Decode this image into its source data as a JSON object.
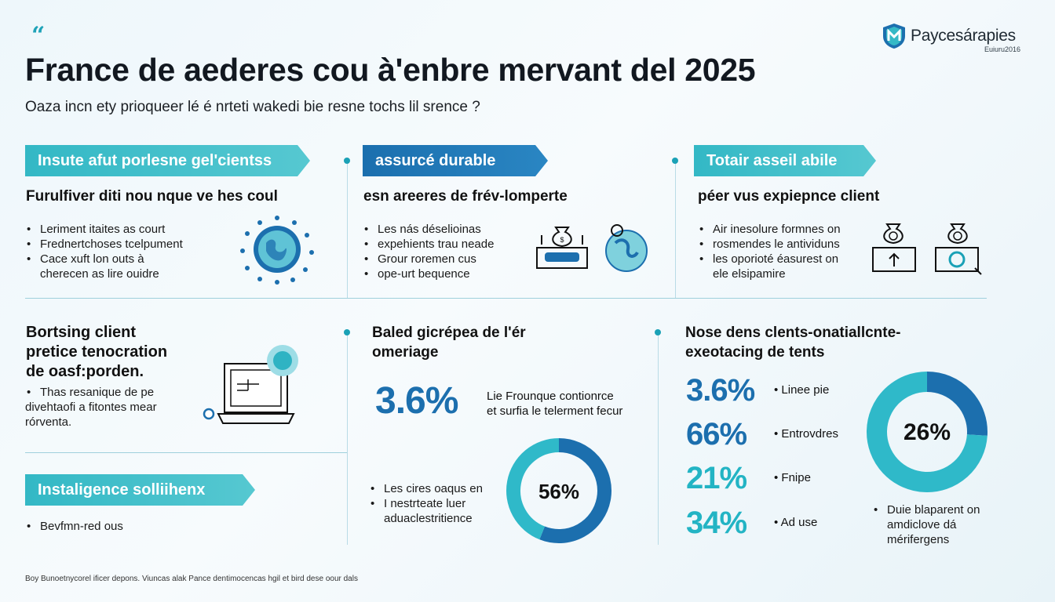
{
  "header": {
    "quote_mark": "“",
    "title": "France de aederes cou à'enbre mervant del 2025",
    "subtitle": "Oaza incn ety prioqueer lé é nrteti wakedi bie resne tochs lil srence ?"
  },
  "brand": {
    "name": "Paycesárapies",
    "tagline": "Euiuru2016"
  },
  "colors": {
    "teal": "#33b8c5",
    "blue": "#1b6fae",
    "background": "#eef7fb"
  },
  "col1": {
    "banner": "Insute afut porlesne gel'cientss",
    "heading": "Furulfiver diti nou nque ve hes coul",
    "bullets": [
      "Leriment itaites as court",
      "Frednertchoses tcelpument",
      "Cace xuft lon outs à"
    ],
    "bullet_cont": "cherecen as lire ouidre",
    "icon": "globe-icon"
  },
  "col2": {
    "banner": "assurcé durable",
    "heading": "esn areeres de frév-lomperte",
    "bullets": [
      "Les nás déselioinas",
      "expehients trau neade",
      "Grour roremen cus",
      "ope-urt bequence"
    ],
    "icons": [
      "money-bag-icon",
      "globe-icon"
    ]
  },
  "col3": {
    "banner": "Totair asseil abile",
    "heading": "péer vus expiepnce client",
    "bullets": [
      "Air inesolure formnes on",
      "rosmendes le antividuns",
      "les oporioté éasurest on"
    ],
    "bullet_cont": "ele elsipamire",
    "icons": [
      "money-bag-growth-icon",
      "money-bag-chart-icon"
    ]
  },
  "mid1": {
    "heading": "Bortsing client\npretice tenocration\nde oasf:porden.",
    "bullets": [
      "Thas resanique de pe"
    ],
    "bullet_cont": [
      "divehtaofi a fitontes mear",
      "rórventa."
    ],
    "icon": "laptop-icon"
  },
  "banner_bottom": "Instaligence solliihenx",
  "bottom1": {
    "bullets": [
      "Bevfmn-red ous"
    ]
  },
  "mid2": {
    "heading": "Baled gicrépea de l'ér\nomeriage",
    "stat": "3.6%",
    "stat_desc": [
      "Lie Frounque contionrce",
      "et surfia le telerment fecur"
    ],
    "bullets": [
      "Les cires oaqus en",
      "I nestrteate luer"
    ],
    "bullet_cont": "aduaclestritience",
    "chart_ref": 0
  },
  "mid3": {
    "heading": "Nose dens clents-onatiallcnte-\nexeotacing de tents",
    "stats": [
      {
        "value": "3.6%",
        "label": "Linee pie",
        "color": "#1c6fae"
      },
      {
        "value": "66%",
        "label": "Entrovdres",
        "color": "#1c6fae"
      },
      {
        "value": "21%",
        "label": "Fnipe",
        "color": "#23b4c4"
      },
      {
        "value": "34%",
        "label": "Ad use",
        "color": "#23b4c4"
      }
    ],
    "bullets": [
      "Duie blaparent on"
    ],
    "bullet_cont": [
      "amdiclove dá",
      "mérifergens"
    ]
  },
  "footer": "Boy Bunoetnycorel ificer depons. Viuncas alak Pance dentimocencas hgil et bird dese oour dals",
  "chart_data": [
    {
      "type": "pie",
      "categories": [
        "",
        ""
      ],
      "values": [
        56,
        44
      ],
      "center_label": "56%",
      "colors": [
        "#1c6fae",
        "#2fb9c9"
      ]
    },
    {
      "type": "pie",
      "categories": [
        "",
        ""
      ],
      "values": [
        26,
        74
      ],
      "center_label": "26%",
      "colors": [
        "#1c6fae",
        "#2fb9c9"
      ]
    }
  ]
}
